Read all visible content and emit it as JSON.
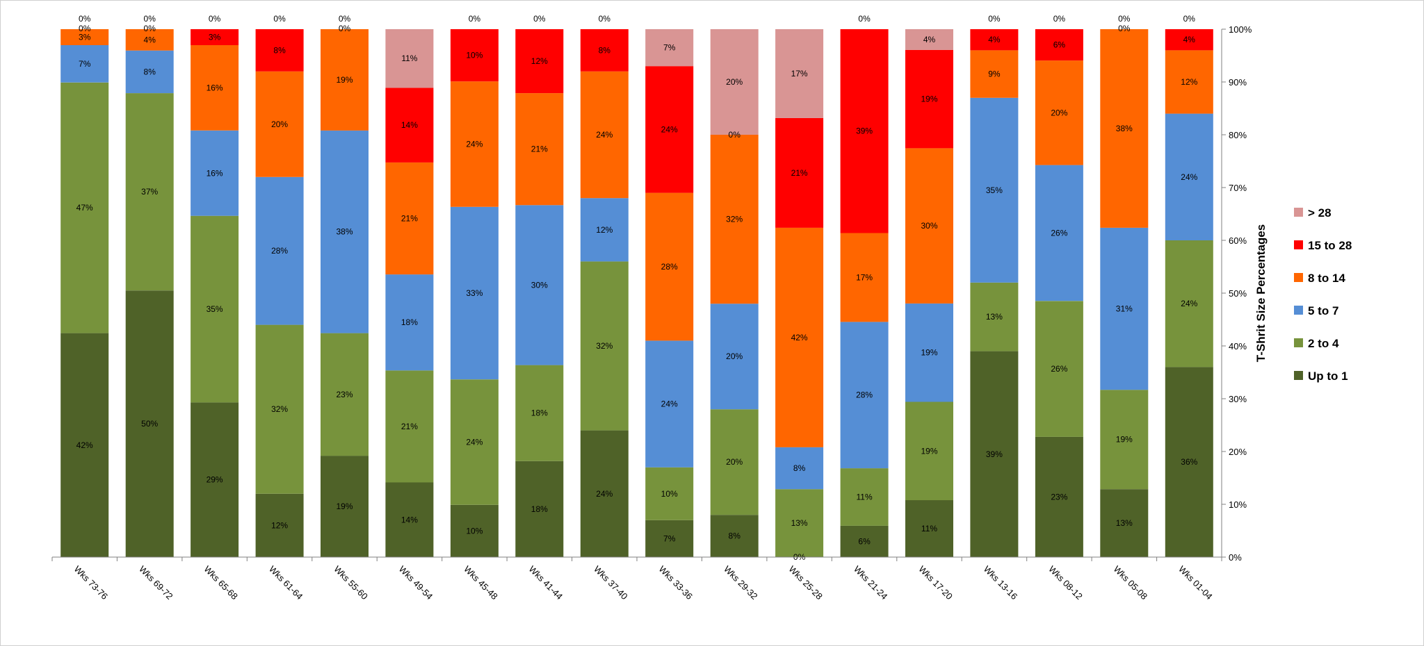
{
  "chart_data": {
    "type": "bar",
    "stacked": true,
    "percent_stacked": true,
    "title": "",
    "xlabel": "",
    "ylabel": "T-Shrit Size Percentages",
    "ylim": [
      0,
      100
    ],
    "y_ticks": [
      "0%",
      "10%",
      "20%",
      "30%",
      "40%",
      "50%",
      "60%",
      "70%",
      "80%",
      "90%",
      "100%"
    ],
    "y_axis_side": "right",
    "grid": false,
    "legend_position": "right",
    "categories": [
      "Wks 73-76",
      "Wks 69-72",
      "Wks 65-68",
      "Wks 61-64",
      "Wks 55-60",
      "Wks 49-54",
      "Wks 45-48",
      "Wks 41-44",
      "Wks 37-40",
      "Wks 33-36",
      "Wks 29-32",
      "Wks 25-28",
      "Wks 21-24",
      "Wks 17-20",
      "Wks 13-16",
      "Wks 08-12",
      "Wks 05-08",
      "Wks 01-04"
    ],
    "series": [
      {
        "name": "Up to 1",
        "color": "#4f6228",
        "values": [
          42,
          50,
          29,
          12,
          19,
          14,
          10,
          18,
          24,
          7,
          8,
          0,
          6,
          11,
          39,
          23,
          13,
          36
        ],
        "labels": [
          "42%",
          "50%",
          "29%",
          "12%",
          "19%",
          "14%",
          "10%",
          "18%",
          "24%",
          "7%",
          "8%",
          "0%",
          "6%",
          "11%",
          "39%",
          "23%",
          "13%",
          "36%"
        ]
      },
      {
        "name": "2 to 4",
        "color": "#77933c",
        "values": [
          47,
          37,
          35,
          32,
          23,
          21,
          24,
          18,
          32,
          10,
          20,
          13,
          11,
          19,
          13,
          26,
          19,
          24
        ],
        "labels": [
          "47%",
          "37%",
          "35%",
          "32%",
          "23%",
          "21%",
          "24%",
          "18%",
          "32%",
          "10%",
          "20%",
          "13%",
          "11%",
          "19%",
          "13%",
          "26%",
          "19%",
          "24%"
        ]
      },
      {
        "name": "5 to 7",
        "color": "#558ed5",
        "values": [
          7,
          8,
          16,
          28,
          38,
          18,
          33,
          30,
          12,
          24,
          20,
          8,
          28,
          19,
          35,
          26,
          31,
          24
        ],
        "labels": [
          "7%",
          "8%",
          "16%",
          "28%",
          "38%",
          "18%",
          "33%",
          "30%",
          "12%",
          "24%",
          "20%",
          "8%",
          "28%",
          "19%",
          "35%",
          "26%",
          "31%",
          "24%"
        ]
      },
      {
        "name": "8 to 14",
        "color": "#ff6600",
        "values": [
          3,
          4,
          16,
          20,
          19,
          21,
          24,
          21,
          24,
          28,
          32,
          42,
          17,
          30,
          9,
          20,
          38,
          12
        ],
        "labels": [
          "3%",
          "4%",
          "16%",
          "20%",
          "19%",
          "21%",
          "24%",
          "21%",
          "24%",
          "28%",
          "32%",
          "42%",
          "17%",
          "30%",
          "9%",
          "20%",
          "38%",
          "12%"
        ]
      },
      {
        "name": "15 to 28",
        "color": "#ff0000",
        "values": [
          0,
          0,
          3,
          8,
          0,
          14,
          10,
          12,
          8,
          24,
          0,
          21,
          39,
          19,
          4,
          6,
          0,
          4
        ],
        "labels": [
          "0%",
          "0%",
          "3%",
          "8%",
          "0%",
          "14%",
          "10%",
          "12%",
          "8%",
          "24%",
          "0%",
          "21%",
          "39%",
          "19%",
          "4%",
          "6%",
          "0%",
          "4%"
        ]
      },
      {
        "name": "> 28",
        "color": "#d99594",
        "values": [
          0,
          0,
          0,
          0,
          0,
          11,
          0,
          0,
          0,
          7,
          20,
          17,
          0,
          4,
          0,
          0,
          0,
          0
        ],
        "labels": [
          "0%",
          "0%",
          "0%",
          "0%",
          "0%",
          "11%",
          "0%",
          "0%",
          "0%",
          "7%",
          "20%",
          "17%",
          "0%",
          "4%",
          "0%",
          "0%",
          "0%",
          "0%"
        ]
      }
    ]
  }
}
